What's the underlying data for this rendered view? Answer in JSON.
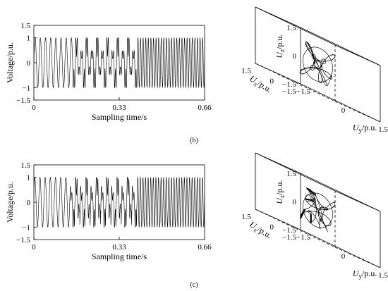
{
  "panels": [
    {
      "label": "(b)",
      "time_plot": {
        "type": "line",
        "xlabel": "Sampling time/s",
        "ylabel": "Voltage/p.u.",
        "xlim": [
          0,
          0.66
        ],
        "ylim": [
          -1.5,
          1.5
        ],
        "xticks": [
          "0",
          "0.33",
          "0.66"
        ],
        "yticks": [
          "1.5",
          "1",
          "0",
          "-1",
          "-1.5"
        ],
        "segments": [
          {
            "t": [
              0,
              0.15
            ],
            "pattern": "sine",
            "amplitude": 1,
            "frequency_hz": 50
          },
          {
            "t": [
              0.15,
              0.4
            ],
            "pattern": "distorted",
            "amplitude": 1,
            "frequency_hz": 50
          },
          {
            "t": [
              0.4,
              0.66
            ],
            "pattern": "sine",
            "amplitude": 1,
            "frequency_hz": 100
          }
        ]
      },
      "phase_plot": {
        "type": "line",
        "xlabel": "Ux/p.u.",
        "ylabel": "Uy/p.u.",
        "zlabel": "Uz/p.u.",
        "range": [
          -1.5,
          1.5
        ],
        "x_ticks": [
          "1.5",
          "0",
          "-1.5"
        ],
        "y_ticks": [
          "-1.5",
          "0",
          "1.5"
        ],
        "z_ticks": [
          "1.5",
          "0",
          "-1.5"
        ]
      }
    },
    {
      "label": "(c)",
      "time_plot": {
        "type": "line",
        "xlabel": "Sampling time/s",
        "ylabel": "Voltage/p.u.",
        "xlim": [
          0,
          0.66
        ],
        "ylim": [
          -1.5,
          1.5
        ],
        "xticks": [
          "0",
          "0.33",
          "0.66"
        ],
        "yticks": [
          "1.5",
          "1",
          "0",
          "-1",
          "-1.5"
        ],
        "segments": [
          {
            "t": [
              0,
              0.14
            ],
            "pattern": "sine",
            "amplitude": 1,
            "frequency_hz": 50
          },
          {
            "t": [
              0.14,
              0.4
            ],
            "pattern": "distorted",
            "amplitude": 1,
            "frequency_hz": 50
          },
          {
            "t": [
              0.4,
              0.66
            ],
            "pattern": "sine",
            "amplitude": 1,
            "frequency_hz": 100
          }
        ]
      },
      "phase_plot": {
        "type": "line",
        "xlabel": "Ux/p.u.",
        "ylabel": "Uy/p.u.",
        "zlabel": "Uz/p.u.",
        "range": [
          -1.5,
          1.5
        ],
        "x_ticks": [
          "1.5",
          "0",
          "-1.5"
        ],
        "y_ticks": [
          "-1.5",
          "0",
          "1.5"
        ],
        "z_ticks": [
          "1.5",
          "0",
          "-1.5"
        ]
      }
    }
  ]
}
